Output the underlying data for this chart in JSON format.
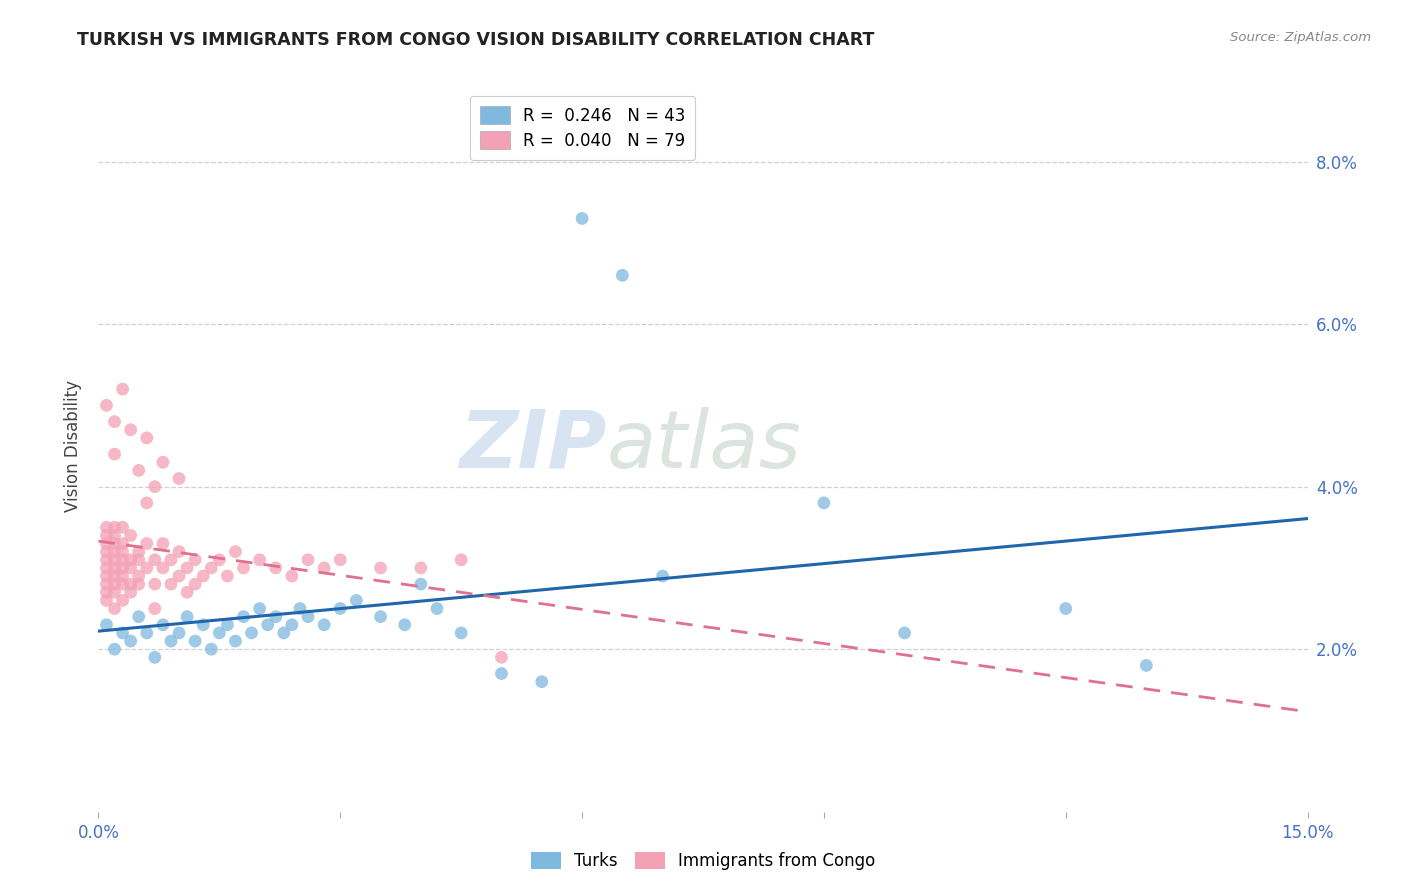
{
  "title": "TURKISH VS IMMIGRANTS FROM CONGO VISION DISABILITY CORRELATION CHART",
  "source": "Source: ZipAtlas.com",
  "ylabel": "Vision Disability",
  "xlim": [
    0.0,
    0.15
  ],
  "ylim": [
    0.0,
    0.09
  ],
  "turks_R": 0.246,
  "turks_N": 43,
  "congo_R": 0.04,
  "congo_N": 79,
  "turks_color": "#7fb9e0",
  "congo_color": "#f4a0b5",
  "turks_line_color": "#2166ac",
  "congo_line_color": "#e07090",
  "watermark_zip": "ZIP",
  "watermark_atlas": "atlas",
  "turks_x": [
    0.001,
    0.002,
    0.003,
    0.004,
    0.005,
    0.006,
    0.007,
    0.008,
    0.009,
    0.01,
    0.011,
    0.012,
    0.013,
    0.014,
    0.015,
    0.016,
    0.017,
    0.018,
    0.019,
    0.02,
    0.021,
    0.022,
    0.023,
    0.024,
    0.025,
    0.026,
    0.028,
    0.03,
    0.032,
    0.035,
    0.038,
    0.04,
    0.042,
    0.045,
    0.05,
    0.055,
    0.06,
    0.065,
    0.07,
    0.09,
    0.1,
    0.12,
    0.13
  ],
  "turks_y": [
    0.023,
    0.02,
    0.022,
    0.021,
    0.024,
    0.022,
    0.019,
    0.023,
    0.021,
    0.022,
    0.024,
    0.021,
    0.023,
    0.02,
    0.022,
    0.023,
    0.021,
    0.024,
    0.022,
    0.025,
    0.023,
    0.024,
    0.022,
    0.023,
    0.025,
    0.024,
    0.023,
    0.025,
    0.026,
    0.024,
    0.023,
    0.028,
    0.025,
    0.022,
    0.017,
    0.016,
    0.073,
    0.066,
    0.029,
    0.038,
    0.022,
    0.025,
    0.018
  ],
  "congo_x": [
    0.001,
    0.001,
    0.001,
    0.001,
    0.001,
    0.001,
    0.001,
    0.001,
    0.001,
    0.001,
    0.002,
    0.002,
    0.002,
    0.002,
    0.002,
    0.002,
    0.002,
    0.002,
    0.002,
    0.002,
    0.003,
    0.003,
    0.003,
    0.003,
    0.003,
    0.003,
    0.003,
    0.003,
    0.004,
    0.004,
    0.004,
    0.004,
    0.004,
    0.005,
    0.005,
    0.005,
    0.005,
    0.006,
    0.006,
    0.006,
    0.007,
    0.007,
    0.007,
    0.008,
    0.008,
    0.009,
    0.009,
    0.01,
    0.01,
    0.011,
    0.011,
    0.012,
    0.013,
    0.014,
    0.015,
    0.016,
    0.017,
    0.018,
    0.02,
    0.022,
    0.024,
    0.026,
    0.028,
    0.03,
    0.035,
    0.04,
    0.045,
    0.05,
    0.001,
    0.002,
    0.002,
    0.003,
    0.004,
    0.005,
    0.006,
    0.007,
    0.008,
    0.01,
    0.012
  ],
  "congo_y": [
    0.03,
    0.032,
    0.028,
    0.033,
    0.035,
    0.027,
    0.029,
    0.034,
    0.031,
    0.026,
    0.033,
    0.029,
    0.035,
    0.031,
    0.027,
    0.032,
    0.028,
    0.03,
    0.025,
    0.034,
    0.031,
    0.028,
    0.033,
    0.029,
    0.026,
    0.032,
    0.035,
    0.03,
    0.031,
    0.028,
    0.034,
    0.03,
    0.027,
    0.032,
    0.029,
    0.031,
    0.028,
    0.033,
    0.03,
    0.038,
    0.031,
    0.028,
    0.025,
    0.033,
    0.03,
    0.031,
    0.028,
    0.032,
    0.029,
    0.03,
    0.027,
    0.031,
    0.029,
    0.03,
    0.031,
    0.029,
    0.032,
    0.03,
    0.031,
    0.03,
    0.029,
    0.031,
    0.03,
    0.031,
    0.03,
    0.03,
    0.031,
    0.019,
    0.05,
    0.048,
    0.044,
    0.052,
    0.047,
    0.042,
    0.046,
    0.04,
    0.043,
    0.041,
    0.028
  ]
}
